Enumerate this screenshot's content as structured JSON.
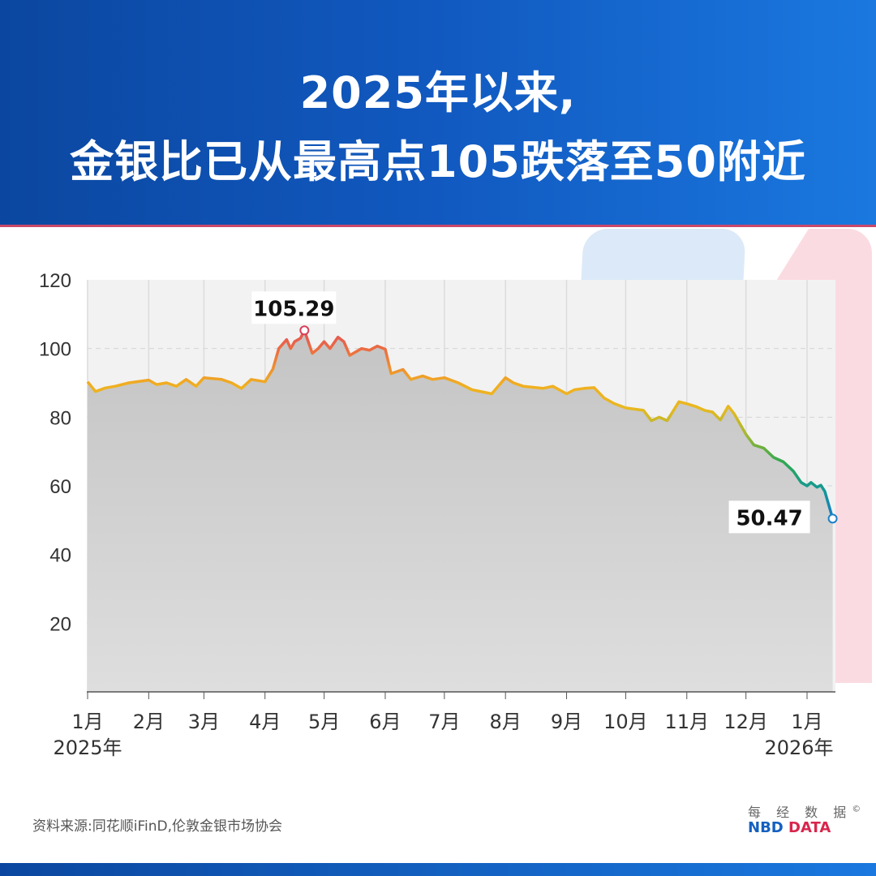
{
  "title_line1": "2025年以来,",
  "title_line2": "金银比已从最高点105跌落至50附近",
  "source": "资料来源:同花顺iFinD,伦敦金银市场协会",
  "logo": {
    "cn": "每 经 数 据",
    "copyright": "©",
    "en_a": "NBD",
    "en_b": "DATA"
  },
  "colors": {
    "header": "#1159c0",
    "accent_red": "#d8264c",
    "high": "#e8604a",
    "mid": "#f0b020",
    "low_green": "#2aa060",
    "low_blue": "#1a80c0"
  },
  "chart_data": {
    "type": "line",
    "fill": "area",
    "ylim": [
      0,
      120
    ],
    "yticks": [
      20,
      40,
      60,
      80,
      100,
      120
    ],
    "xlabels": [
      "1月",
      "2月",
      "3月",
      "4月",
      "5月",
      "6月",
      "7月",
      "8月",
      "9月",
      "10月",
      "11月",
      "12月",
      "1月"
    ],
    "xlabel_dates": [
      "2025-01-01",
      "2025-02-01",
      "2025-03-01",
      "2025-04-01",
      "2025-05-01",
      "2025-06-01",
      "2025-07-01",
      "2025-08-01",
      "2025-09-01",
      "2025-10-01",
      "2025-11-01",
      "2025-12-01",
      "2026-01-01"
    ],
    "year_labels": [
      {
        "date": "2025-01-01",
        "label": "2025年"
      },
      {
        "date": "2026-01-01",
        "label": "2026年"
      }
    ],
    "grid": true,
    "annotations": [
      {
        "date": "2025-04-21",
        "value": 105.29,
        "label": "105.29"
      },
      {
        "date": "2026-01-14",
        "value": 50.47,
        "label": "50.47"
      }
    ],
    "points": [
      [
        "2025-01-01",
        90.3
      ],
      [
        "2025-01-05",
        87.5
      ],
      [
        "2025-01-10",
        88.5
      ],
      [
        "2025-01-15",
        89
      ],
      [
        "2025-01-22",
        90
      ],
      [
        "2025-02-01",
        90.8
      ],
      [
        "2025-02-05",
        89.5
      ],
      [
        "2025-02-10",
        90
      ],
      [
        "2025-02-15",
        89
      ],
      [
        "2025-02-20",
        91
      ],
      [
        "2025-02-25",
        89
      ],
      [
        "2025-03-01",
        91.5
      ],
      [
        "2025-03-10",
        91
      ],
      [
        "2025-03-15",
        90
      ],
      [
        "2025-03-20",
        88.4
      ],
      [
        "2025-03-25",
        91
      ],
      [
        "2025-04-01",
        90.3
      ],
      [
        "2025-04-05",
        94
      ],
      [
        "2025-04-08",
        100
      ],
      [
        "2025-04-12",
        102.6
      ],
      [
        "2025-04-14",
        100
      ],
      [
        "2025-04-16",
        102
      ],
      [
        "2025-04-19",
        103
      ],
      [
        "2025-04-21",
        105.29
      ],
      [
        "2025-04-25",
        98.6
      ],
      [
        "2025-04-28",
        100
      ],
      [
        "2025-05-01",
        102
      ],
      [
        "2025-05-04",
        100
      ],
      [
        "2025-05-08",
        103.3
      ],
      [
        "2025-05-11",
        102
      ],
      [
        "2025-05-14",
        98
      ],
      [
        "2025-05-20",
        100
      ],
      [
        "2025-05-24",
        99.5
      ],
      [
        "2025-05-28",
        100.7
      ],
      [
        "2025-06-01",
        99.8
      ],
      [
        "2025-06-04",
        92.7
      ],
      [
        "2025-06-10",
        93.9
      ],
      [
        "2025-06-14",
        91
      ],
      [
        "2025-06-20",
        92
      ],
      [
        "2025-06-25",
        91
      ],
      [
        "2025-07-01",
        91.5
      ],
      [
        "2025-07-08",
        90
      ],
      [
        "2025-07-15",
        88
      ],
      [
        "2025-07-25",
        86.8
      ],
      [
        "2025-08-01",
        91.5
      ],
      [
        "2025-08-05",
        90
      ],
      [
        "2025-08-10",
        89
      ],
      [
        "2025-08-20",
        88.4
      ],
      [
        "2025-08-25",
        89
      ],
      [
        "2025-09-01",
        86.8
      ],
      [
        "2025-09-05",
        88
      ],
      [
        "2025-09-10",
        88.4
      ],
      [
        "2025-09-15",
        88.6
      ],
      [
        "2025-09-20",
        85.6
      ],
      [
        "2025-09-25",
        84
      ],
      [
        "2025-10-01",
        82.7
      ],
      [
        "2025-10-10",
        82
      ],
      [
        "2025-10-14",
        79
      ],
      [
        "2025-10-18",
        80
      ],
      [
        "2025-10-22",
        79
      ],
      [
        "2025-10-28",
        84.5
      ],
      [
        "2025-11-01",
        83.9
      ],
      [
        "2025-11-06",
        83
      ],
      [
        "2025-11-10",
        82
      ],
      [
        "2025-11-14",
        81.5
      ],
      [
        "2025-11-18",
        79.2
      ],
      [
        "2025-11-22",
        83.2
      ],
      [
        "2025-11-25",
        81
      ],
      [
        "2025-12-01",
        75
      ],
      [
        "2025-12-05",
        71.9
      ],
      [
        "2025-12-10",
        71
      ],
      [
        "2025-12-15",
        68.3
      ],
      [
        "2025-12-20",
        67
      ],
      [
        "2025-12-25",
        64.3
      ],
      [
        "2025-12-29",
        61
      ],
      [
        "2026-01-01",
        60
      ],
      [
        "2026-01-03",
        61
      ],
      [
        "2026-01-06",
        59.6
      ],
      [
        "2026-01-08",
        60.2
      ],
      [
        "2026-01-10",
        58.4
      ],
      [
        "2026-01-14",
        50.47
      ]
    ]
  }
}
